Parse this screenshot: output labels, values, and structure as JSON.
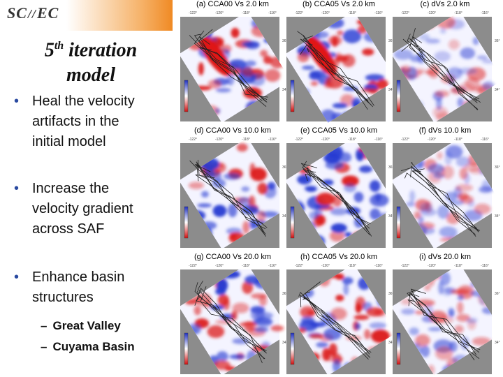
{
  "logo": {
    "left": "SC",
    "right": "EC"
  },
  "title": {
    "number": "5",
    "suffix": "th",
    "rest": "iteration",
    "line2": "model"
  },
  "bullets": [
    {
      "lines": [
        "Heal the velocity",
        "artifacts in the",
        "initial model"
      ]
    },
    {
      "lines": [
        "Increase the",
        "velocity gradient",
        "across SAF"
      ]
    },
    {
      "lines": [
        "Enhance basin",
        "structures"
      ],
      "sub": [
        "Great Valley",
        "Cuyama Basin"
      ]
    }
  ],
  "panels": [
    {
      "label": "(a) CCA00  Vs  2.0 km"
    },
    {
      "label": "(b) CCA05  Vs  2.0 km"
    },
    {
      "label": "(c) dVs  2.0 km"
    },
    {
      "label": "(d) CCA00  Vs  10.0 km"
    },
    {
      "label": "(e) CCA05  Vs  10.0 km"
    },
    {
      "label": "(f) dVs  10.0 km"
    },
    {
      "label": "(g) CCA00  Vs  20.0 km"
    },
    {
      "label": "(h) CCA05  Vs  20.0 km"
    },
    {
      "label": "(i) dVs  20.0 km"
    }
  ],
  "map_ticks": {
    "lon": [
      "-122°",
      "-120°",
      "-118°",
      "-116°"
    ],
    "lat": [
      "36°",
      "34°"
    ]
  }
}
